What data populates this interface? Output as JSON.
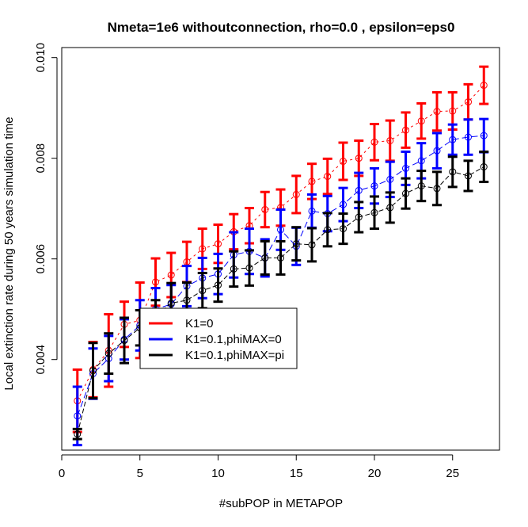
{
  "chart_data": {
    "type": "line",
    "title": "Nmeta=1e6  withoutconnection, rho=0.0 , epsilon=eps0",
    "xlabel": "#subPOP in METAPOP",
    "ylabel": "Local extinction rate during 50 years simulation time",
    "xlim": [
      0,
      28
    ],
    "ylim": [
      0.0022,
      0.0102
    ],
    "xticks": [
      0,
      5,
      10,
      15,
      20,
      25
    ],
    "yticks": [
      0.004,
      0.006,
      0.008,
      0.01
    ],
    "ytick_labels": [
      "0.004",
      "0.006",
      "0.008",
      "0.010"
    ],
    "grid": false,
    "legend_position": "center",
    "x": [
      1,
      2,
      3,
      4,
      5,
      6,
      7,
      8,
      9,
      10,
      11,
      12,
      13,
      14,
      15,
      16,
      17,
      18,
      19,
      20,
      21,
      22,
      23,
      24,
      25,
      26,
      27
    ],
    "series": [
      {
        "name": "K1=0",
        "color": "#ff0000",
        "values": [
          0.00318,
          0.0038,
          0.00418,
          0.0047,
          0.00478,
          0.00554,
          0.00568,
          0.00594,
          0.0062,
          0.0063,
          0.00654,
          0.00666,
          0.00698,
          0.00702,
          0.00728,
          0.00754,
          0.00764,
          0.00794,
          0.008,
          0.00832,
          0.00835,
          0.00856,
          0.00874,
          0.00893,
          0.00894,
          0.00912,
          0.00945
        ],
        "err": [
          0.00062,
          0.00055,
          0.00072,
          0.00045,
          0.00075,
          0.00047,
          0.00044,
          0.0004,
          0.0004,
          0.00038,
          0.00035,
          0.00035,
          0.00035,
          0.00036,
          0.00037,
          0.00035,
          0.00035,
          0.00037,
          0.00035,
          0.00036,
          0.0004,
          0.00035,
          0.00035,
          0.00038,
          0.00037,
          0.00035,
          0.00037
        ]
      },
      {
        "name": "K1=0.1,phiMAX=0",
        "color": "#0000ff",
        "values": [
          0.00288,
          0.00372,
          0.00402,
          0.0044,
          0.00468,
          0.005,
          0.0051,
          0.00546,
          0.00562,
          0.0057,
          0.00608,
          0.00615,
          0.00602,
          0.00658,
          0.00625,
          0.00695,
          0.0069,
          0.00708,
          0.00736,
          0.00745,
          0.00758,
          0.0078,
          0.00795,
          0.00815,
          0.00837,
          0.00842,
          0.00845
        ],
        "err": [
          0.00058,
          0.0005,
          0.00045,
          0.0004,
          0.0005,
          0.00042,
          0.00038,
          0.0004,
          0.0004,
          0.0004,
          0.00045,
          0.00045,
          0.00037,
          0.0004,
          0.00037,
          0.00033,
          0.00035,
          0.00033,
          0.00035,
          0.00035,
          0.00035,
          0.00033,
          0.00035,
          0.00035,
          0.0003,
          0.00035,
          0.00033
        ]
      },
      {
        "name": "K1=0.1,phiMAX=pi",
        "color": "#000000",
        "values": [
          0.00252,
          0.00378,
          0.00412,
          0.00438,
          0.00463,
          0.00488,
          0.00512,
          0.00518,
          0.00537,
          0.00548,
          0.0058,
          0.00582,
          0.00602,
          0.00602,
          0.0063,
          0.00628,
          0.00658,
          0.0066,
          0.00683,
          0.00692,
          0.00702,
          0.0073,
          0.00745,
          0.0074,
          0.00773,
          0.00765,
          0.00783
        ],
        "err": [
          0.0001,
          0.00055,
          0.0004,
          0.00045,
          0.00035,
          0.0003,
          0.0004,
          0.00035,
          0.00035,
          0.00033,
          0.00035,
          0.00035,
          0.00033,
          0.00033,
          0.00033,
          0.00033,
          0.00033,
          0.0003,
          0.0003,
          0.00032,
          0.0003,
          0.0003,
          0.0003,
          0.00033,
          0.0003,
          0.0003,
          0.0003
        ]
      }
    ]
  }
}
